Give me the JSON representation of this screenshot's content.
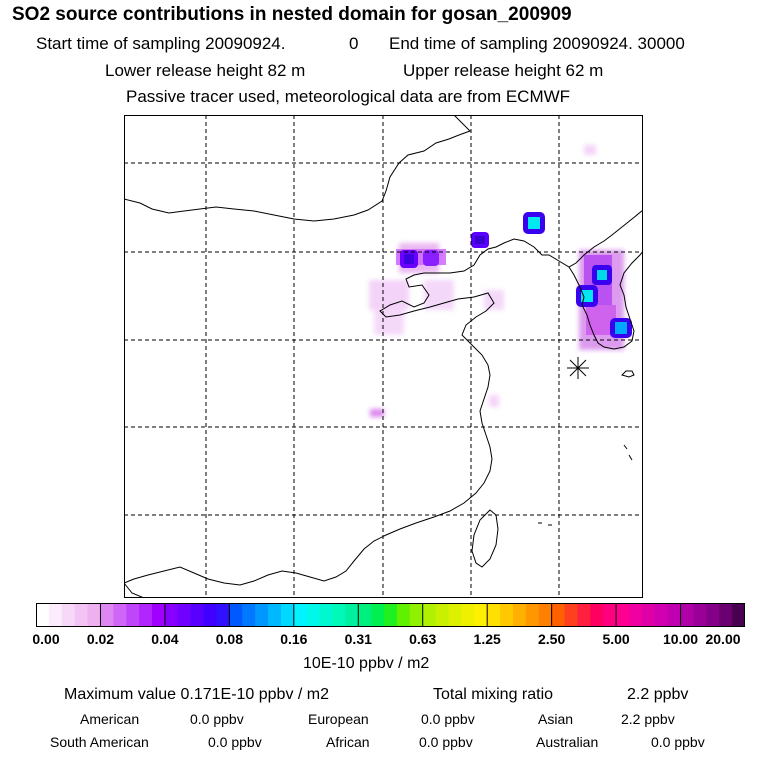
{
  "header": {
    "title": "SO2 source contributions in nested domain for gosan_200909",
    "start_label": "Start time of sampling 20090924.",
    "start_value": "0",
    "end_label": "End time of sampling 20090924. 30000",
    "lower_release": "Lower release height   82 m",
    "upper_release": "Upper release height   62 m",
    "info": "Passive tracer used, meteorological data are from ECMWF"
  },
  "colorbar": {
    "tick_labels": [
      "0.00",
      "0.02",
      "0.04",
      "0.08",
      "0.16",
      "0.31",
      "0.63",
      "1.25",
      "2.50",
      "5.00",
      "10.00",
      "20.00"
    ],
    "units": "10E-10 ppbv / m2"
  },
  "summary": {
    "max_label": "Maximum value  0.171E-10 ppbv / m2",
    "total_label": "Total mixing ratio",
    "total_value": "2.2 ppbv",
    "regions": [
      {
        "name": "American",
        "value": "0.0 ppbv"
      },
      {
        "name": "European",
        "value": "0.0 ppbv"
      },
      {
        "name": "Asian",
        "value": "2.2 ppbv"
      },
      {
        "name": "South American",
        "value": "0.0 ppbv"
      },
      {
        "name": "African",
        "value": "0.0 ppbv"
      },
      {
        "name": "Australian",
        "value": "0.0 ppbv"
      }
    ]
  },
  "map": {
    "receptor_marker": "asterisk-marker"
  }
}
